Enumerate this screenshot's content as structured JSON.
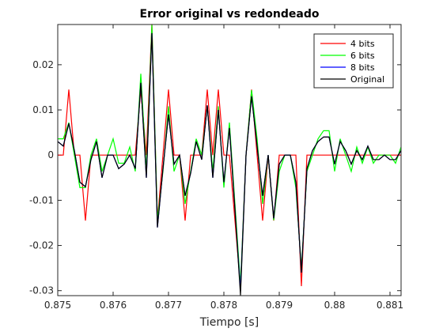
{
  "chart_data": {
    "type": "line",
    "title": "Error original vs redondeado",
    "xlabel": "Tiempo [s]",
    "x": [
      0.875,
      0.8751,
      0.8752,
      0.8753,
      0.8754,
      0.8755,
      0.8756,
      0.8757,
      0.8758,
      0.8759,
      0.876,
      0.8761,
      0.8762,
      0.8763,
      0.8764,
      0.8765,
      0.8766,
      0.8767,
      0.8768,
      0.8769,
      0.877,
      0.8771,
      0.8772,
      0.8773,
      0.8774,
      0.8775,
      0.8776,
      0.8777,
      0.8778,
      0.8779,
      0.878,
      0.8781,
      0.8782,
      0.8783,
      0.8784,
      0.8785,
      0.8786,
      0.8787,
      0.8788,
      0.8789,
      0.879,
      0.8791,
      0.8792,
      0.8793,
      0.8794,
      0.8795,
      0.8796,
      0.8797,
      0.8798,
      0.8799,
      0.88,
      0.8801,
      0.8802,
      0.8803,
      0.8804,
      0.8805,
      0.8806,
      0.8807,
      0.8808,
      0.8809,
      0.881,
      0.8811,
      0.8812
    ],
    "series": [
      {
        "name": "4 bits",
        "color": "#ff0000",
        "values": [
          0,
          0,
          0.0145,
          0,
          0,
          -0.0145,
          0,
          0,
          0,
          0,
          0,
          0,
          0,
          0,
          0,
          0.0145,
          0,
          0.029,
          -0.0145,
          0,
          0.0145,
          0,
          0,
          -0.0145,
          0,
          0,
          0,
          0.0145,
          0,
          0.0145,
          0,
          0,
          -0.0145,
          -0.029,
          0,
          0.0145,
          0,
          -0.0145,
          0,
          -0.0145,
          0,
          0,
          0,
          0,
          -0.029,
          0,
          0,
          0,
          0,
          0,
          0,
          0,
          0,
          0,
          0,
          0,
          0,
          0,
          0,
          0,
          0,
          0,
          0
        ]
      },
      {
        "name": "6 bits",
        "color": "#00ff00",
        "values": [
          0.0036,
          0.0036,
          0.0072,
          0,
          -0.0072,
          -0.0072,
          0,
          0.0036,
          -0.0036,
          0,
          0.0036,
          -0.0018,
          -0.0018,
          0.0018,
          -0.0036,
          0.018,
          -0.0036,
          0.0288,
          -0.0144,
          -0.0036,
          0.0108,
          -0.0036,
          0,
          -0.0108,
          -0.0036,
          0.0036,
          0,
          0.0108,
          -0.0036,
          0.0108,
          -0.0072,
          0.0072,
          -0.0108,
          -0.0288,
          0,
          0.0144,
          0.0036,
          -0.0108,
          0,
          -0.0144,
          -0.0036,
          0,
          0,
          -0.0072,
          -0.0252,
          -0.0036,
          0,
          0.0036,
          0.0054,
          0.0054,
          -0.0036,
          0.0036,
          0,
          -0.0036,
          0.0018,
          -0.0018,
          0.0018,
          -0.0018,
          0,
          0,
          0,
          -0.0018,
          0.0018
        ]
      },
      {
        "name": "8 bits",
        "color": "#0000ff",
        "values": [
          0.003,
          0.002,
          0.007,
          0.001,
          -0.006,
          -0.007,
          -0.001,
          0.003,
          -0.005,
          0,
          0,
          -0.003,
          -0.002,
          0,
          -0.003,
          0.016,
          -0.005,
          0.027,
          -0.016,
          -0.003,
          0.009,
          -0.002,
          0,
          -0.009,
          -0.004,
          0.003,
          -0.001,
          0.011,
          -0.005,
          0.01,
          -0.006,
          0.006,
          -0.012,
          -0.03,
          0,
          0.013,
          0.002,
          -0.009,
          0,
          -0.014,
          -0.002,
          0,
          0,
          -0.006,
          -0.026,
          -0.003,
          0.001,
          0.003,
          0.004,
          0.004,
          -0.002,
          0.003,
          0.001,
          -0.002,
          0.001,
          -0.001,
          0.002,
          -0.001,
          -0.001,
          0,
          -0.001,
          -0.001,
          0.001
        ]
      },
      {
        "name": "Original",
        "color": "#000000",
        "values": [
          0.003,
          0.002,
          0.007,
          0.001,
          -0.006,
          -0.007,
          -0.001,
          0.003,
          -0.005,
          0,
          0,
          -0.003,
          -0.002,
          0,
          -0.003,
          0.016,
          -0.005,
          0.027,
          -0.016,
          -0.003,
          0.009,
          -0.002,
          0,
          -0.009,
          -0.004,
          0.003,
          -0.001,
          0.011,
          -0.005,
          0.01,
          -0.006,
          0.006,
          -0.012,
          -0.031,
          0,
          0.013,
          0.002,
          -0.009,
          0,
          -0.014,
          -0.002,
          0,
          0,
          -0.006,
          -0.026,
          -0.003,
          0.001,
          0.003,
          0.004,
          0.004,
          -0.002,
          0.003,
          0.001,
          -0.002,
          0.001,
          -0.001,
          0.002,
          -0.001,
          -0.001,
          0,
          -0.001,
          -0.001,
          0.001
        ]
      }
    ],
    "xlim": [
      0.875,
      0.8812
    ],
    "ylim": [
      -0.0311,
      0.0289
    ],
    "xticks": [
      0.875,
      0.876,
      0.877,
      0.878,
      0.879,
      0.88,
      0.881
    ],
    "yticks": [
      -0.03,
      -0.02,
      -0.01,
      0,
      0.01,
      0.02
    ],
    "legend": "top-right",
    "grid": false
  }
}
